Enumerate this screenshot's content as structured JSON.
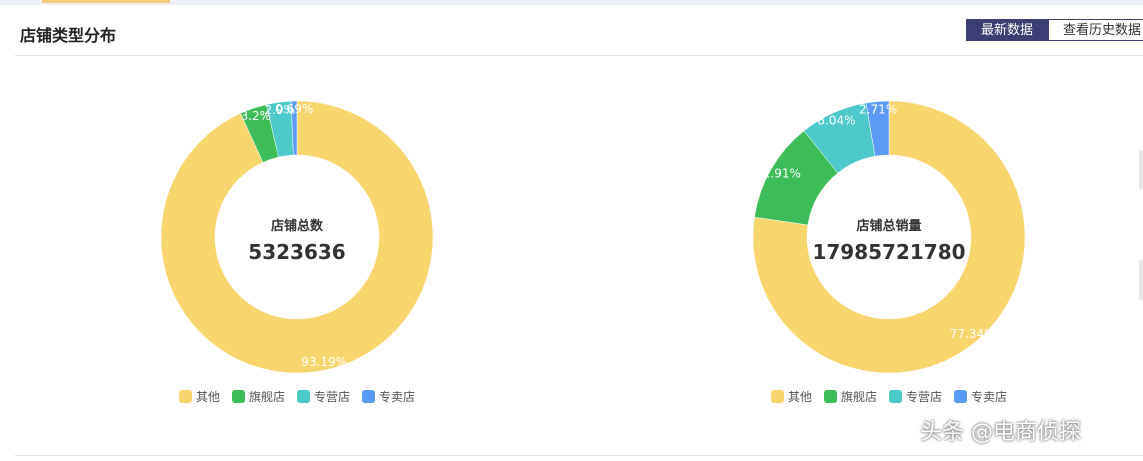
{
  "page": {
    "title": "店铺类型分布",
    "tabs": [
      {
        "label": "最新数据",
        "active": true
      },
      {
        "label": "查看历史数据",
        "active": false
      }
    ],
    "watermark": "头条 @电商侦探"
  },
  "colors": {
    "其他": "#f9d56e",
    "旗舰店": "#3cbd58",
    "专营店": "#4dc9c9",
    "专卖店": "#5b9bf5",
    "tab_active": "#3b3f73"
  },
  "chart_data": [
    {
      "type": "pie",
      "center_label": "店铺总数",
      "center_value": "5323636",
      "categories": [
        "其他",
        "旗舰店",
        "专营店",
        "专卖店"
      ],
      "values": [
        93.19,
        3.2,
        2.92,
        0.69
      ],
      "data_labels": [
        "93.19%",
        "3.2%",
        "2.9%",
        "0.69%"
      ],
      "legend": [
        "其他",
        "旗舰店",
        "专营店",
        "专卖店"
      ]
    },
    {
      "type": "pie",
      "center_label": "店铺总销量",
      "center_value": "17985721780",
      "categories": [
        "其他",
        "旗舰店",
        "专营店",
        "专卖店"
      ],
      "values": [
        77.34,
        11.91,
        8.04,
        2.71
      ],
      "data_labels": [
        "77.34%",
        "11.91%",
        "8.04%",
        "2.71%"
      ],
      "legend": [
        "其他",
        "旗舰店",
        "专营店",
        "专卖店"
      ]
    }
  ]
}
